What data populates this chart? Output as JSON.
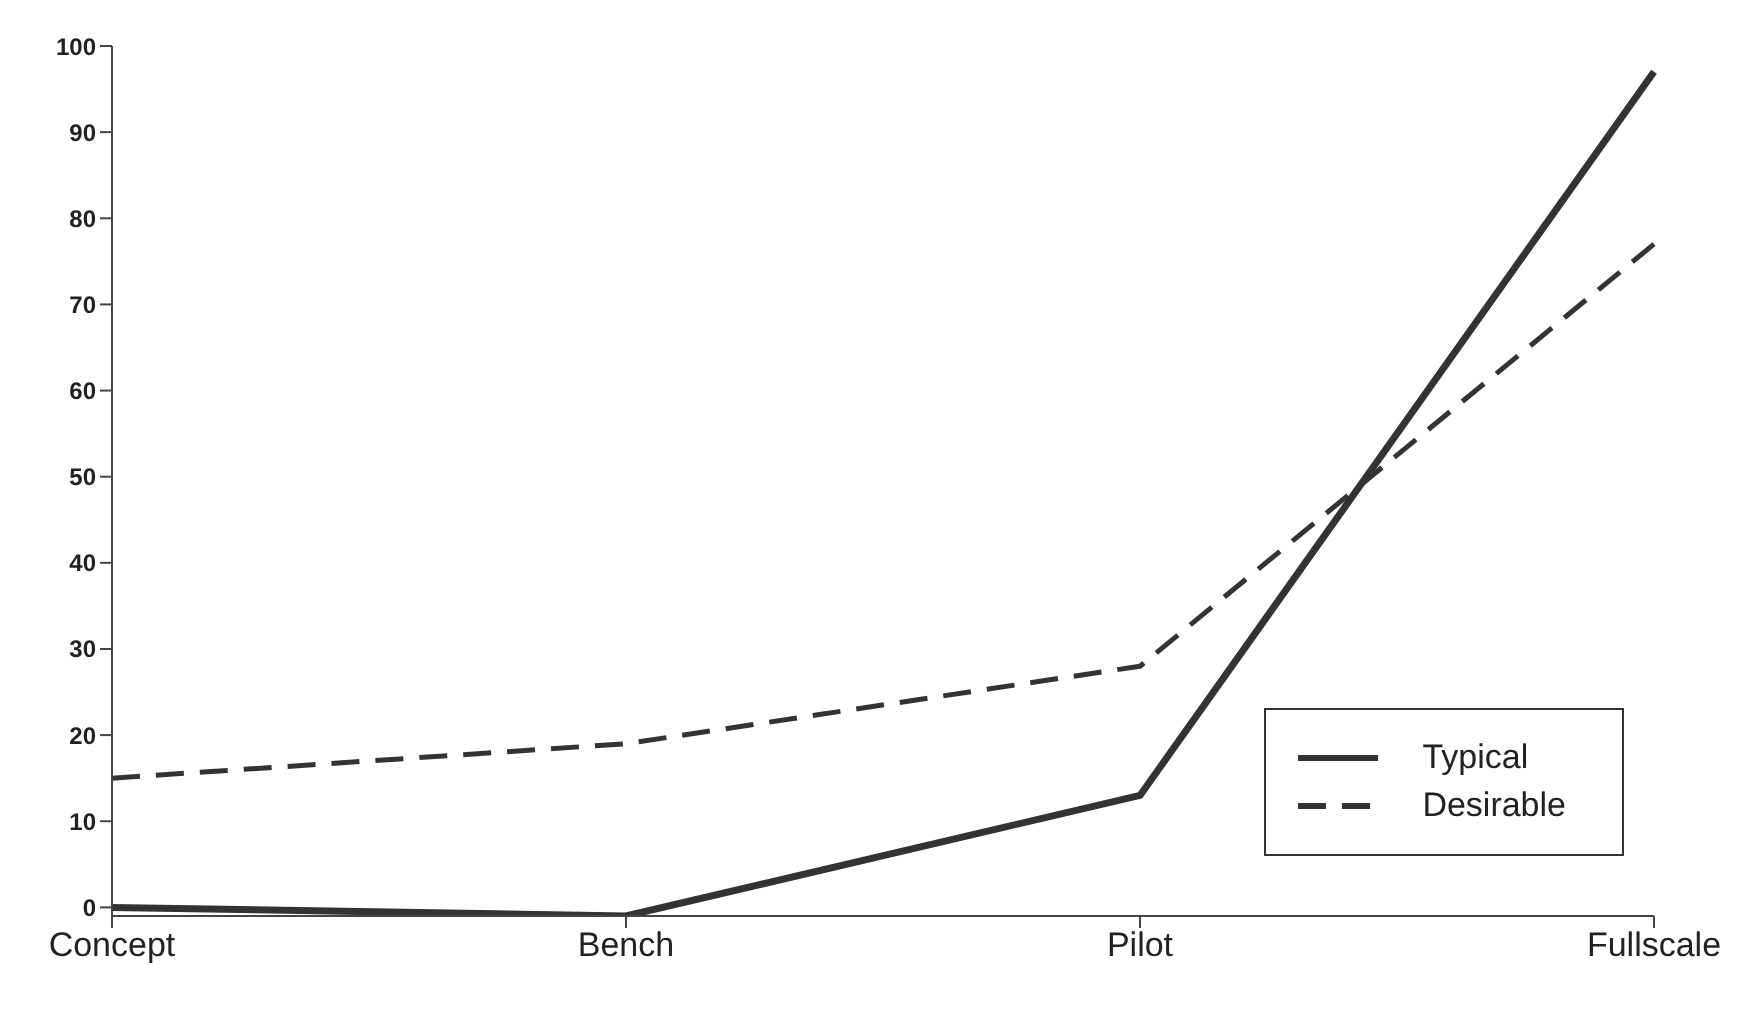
{
  "chart_data": {
    "type": "line",
    "categories": [
      "Concept",
      "Bench",
      "Pilot",
      "Fullscale"
    ],
    "series": [
      {
        "name": "Typical",
        "color": "#333333",
        "values": [
          0,
          -1,
          13,
          97
        ],
        "line_style": "solid"
      },
      {
        "name": "Desirable",
        "color": "#333333",
        "values": [
          15,
          19,
          28,
          77
        ],
        "line_style": "dashed"
      }
    ],
    "ylim": [
      -1,
      100
    ],
    "yticks": [
      0,
      10,
      20,
      30,
      40,
      50,
      60,
      70,
      80,
      90,
      100
    ],
    "grid": false,
    "legend": "bottom right",
    "marker": "none"
  }
}
